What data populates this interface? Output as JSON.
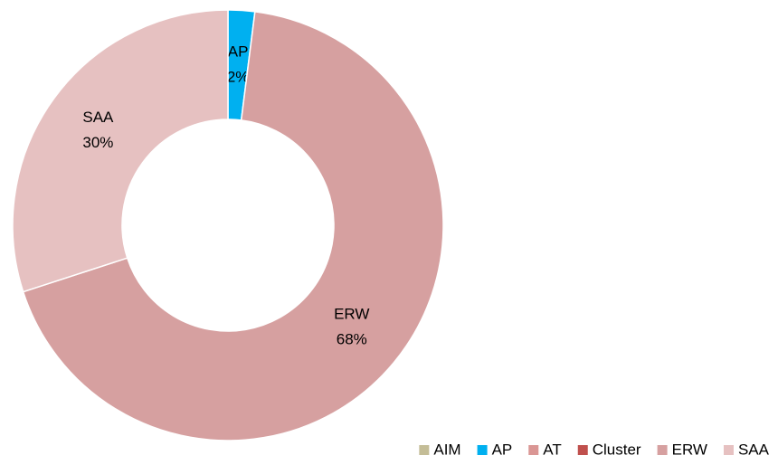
{
  "chart_data": {
    "type": "donut",
    "categories": [
      "AIM",
      "AP",
      "AT",
      "Cluster",
      "ERW",
      "SAA"
    ],
    "values": [
      0,
      2,
      0,
      0,
      68,
      30
    ],
    "value_labels": [
      null,
      "2%",
      null,
      null,
      "68%",
      "30%"
    ],
    "colors": [
      "#c4bd97",
      "#00b0f0",
      "#da9694",
      "#c0504d",
      "#d6a0a0",
      "#e6c1c1"
    ],
    "legend": "bottom-right"
  }
}
